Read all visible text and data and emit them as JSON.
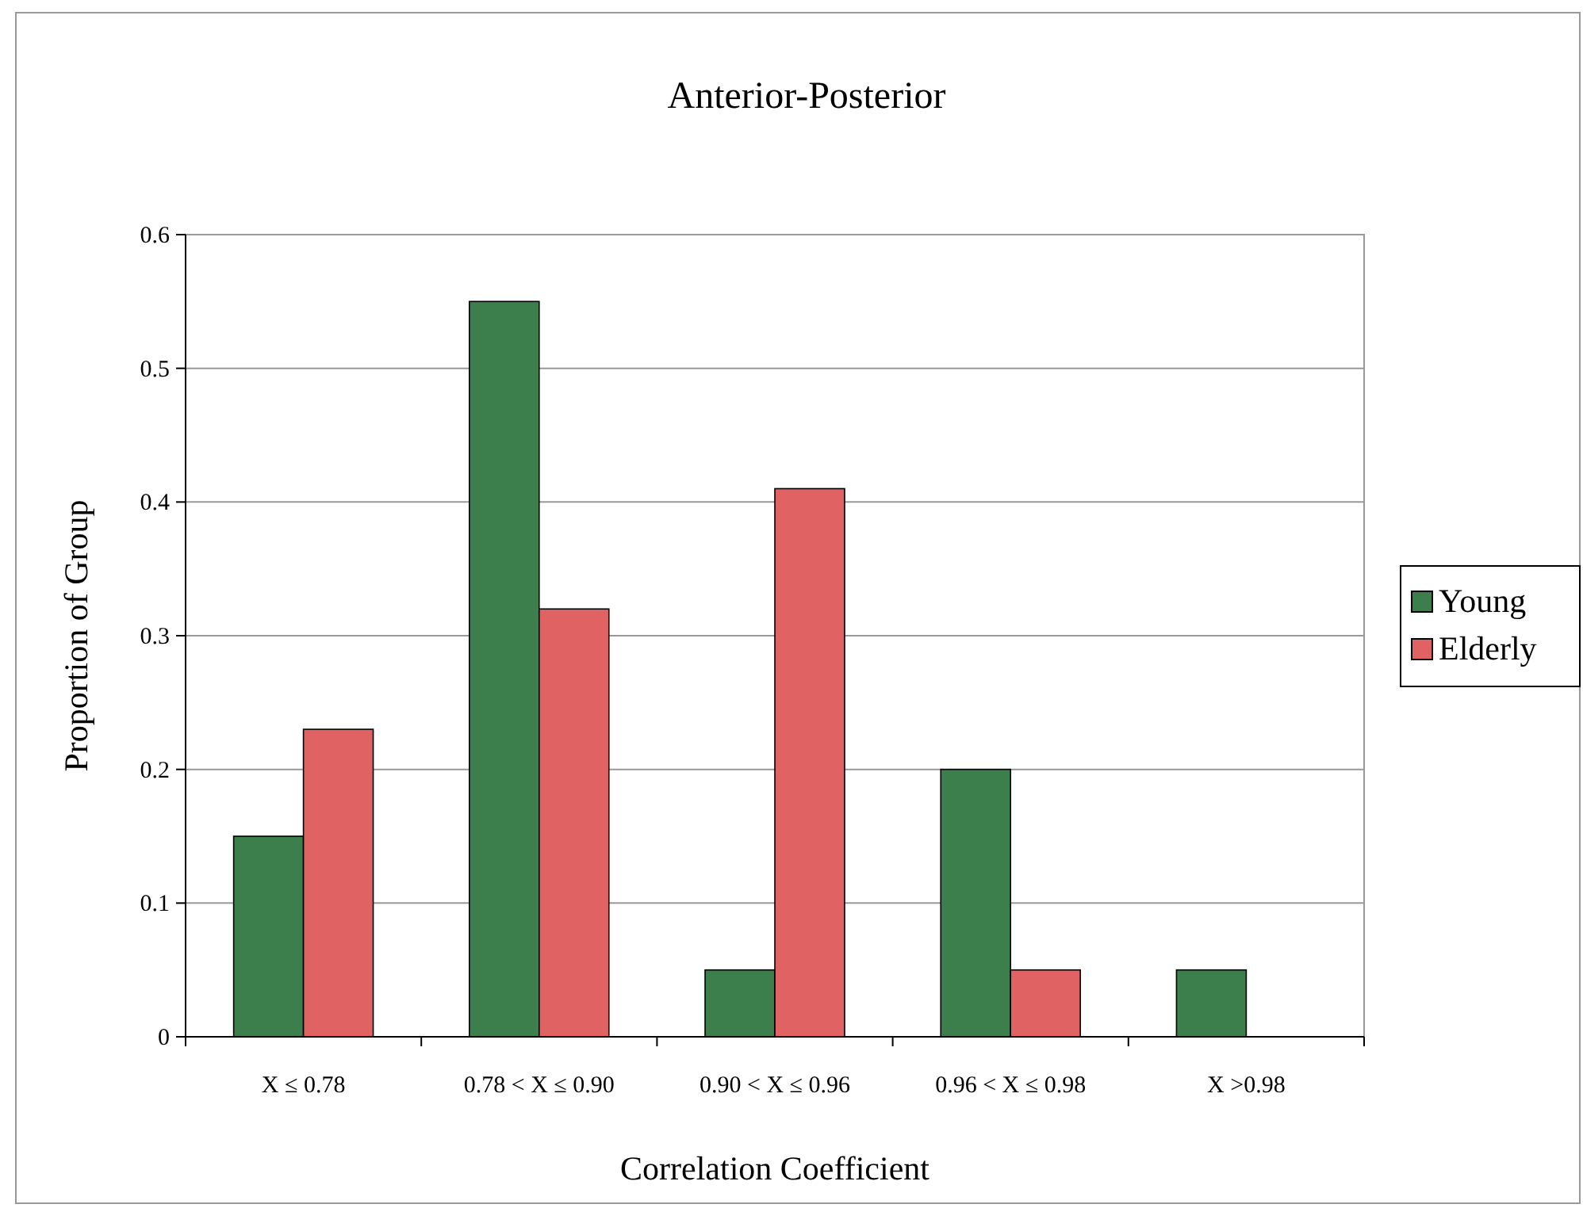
{
  "chart_data": {
    "type": "bar",
    "title": "Anterior-Posterior",
    "xlabel": "Correlation Coefficient",
    "ylabel": "Proportion of Group",
    "categories": [
      "X ≤ 0.78",
      "0.78 < X ≤ 0.90",
      "0.90 < X ≤ 0.96",
      "0.96 < X ≤ 0.98",
      "X >0.98"
    ],
    "series": [
      {
        "name": "Young",
        "color": "#3d7f4c",
        "values": [
          0.15,
          0.55,
          0.05,
          0.2,
          0.05
        ]
      },
      {
        "name": "Elderly",
        "color": "#e06262",
        "values": [
          0.23,
          0.32,
          0.41,
          0.05,
          0
        ]
      }
    ],
    "ylim": [
      0,
      0.6
    ],
    "yticks": [
      0,
      0.1,
      0.2,
      0.3,
      0.4,
      0.5,
      0.6
    ],
    "grid": "y",
    "legend": "right"
  }
}
